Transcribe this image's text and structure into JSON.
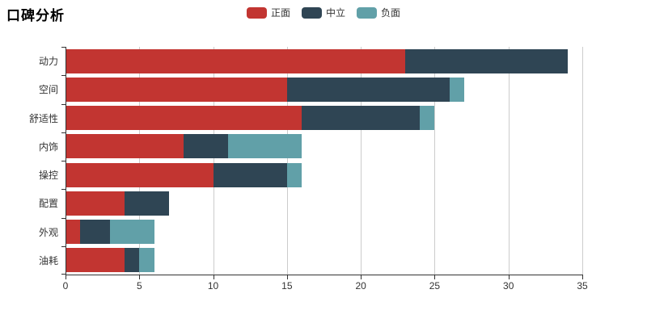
{
  "title": "口碑分析",
  "legend": [
    {
      "name": "positive",
      "label": "正面",
      "color": "#c23531"
    },
    {
      "name": "neutral",
      "label": "中立",
      "color": "#2f4554"
    },
    {
      "name": "negative",
      "label": "负面",
      "color": "#61a0a8"
    }
  ],
  "chart_data": {
    "type": "bar",
    "orientation": "horizontal",
    "stacked": true,
    "title": "口碑分析",
    "categories": [
      "动力",
      "空间",
      "舒适性",
      "内饰",
      "操控",
      "配置",
      "外观",
      "油耗"
    ],
    "series": [
      {
        "name": "正面",
        "semantic": "positive",
        "color": "#c23531",
        "values": [
          23,
          15,
          16,
          8,
          10,
          4,
          1,
          4
        ]
      },
      {
        "name": "中立",
        "semantic": "neutral",
        "color": "#2f4554",
        "values": [
          11,
          11,
          8,
          3,
          5,
          3,
          2,
          1
        ]
      },
      {
        "name": "负面",
        "semantic": "negative",
        "color": "#61a0a8",
        "values": [
          0,
          1,
          1,
          5,
          1,
          0,
          3,
          1
        ]
      }
    ],
    "totals": [
      34,
      27,
      25,
      16,
      16,
      7,
      6,
      6
    ],
    "xlabel": "",
    "ylabel": "",
    "xlim": [
      0,
      35
    ],
    "x_ticks": [
      0,
      5,
      10,
      15,
      20,
      25,
      30,
      35
    ],
    "grid": true,
    "legend_position": "top-center"
  },
  "colors": {
    "axis": "#333333",
    "grid": "#cccccc",
    "background": "#ffffff",
    "title": "#000000"
  }
}
